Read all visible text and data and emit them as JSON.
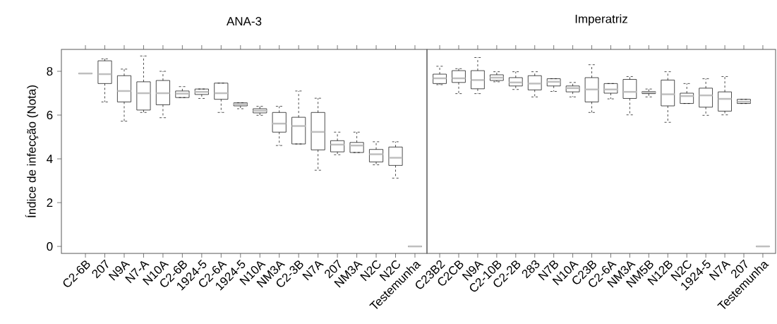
{
  "chart_data": [
    {
      "type": "box",
      "title": "ANA-3",
      "ylabel": "Índice de infecção (Nota)",
      "ylim": [
        -0.32,
        9.0
      ],
      "yticks": [
        0,
        2,
        4,
        6,
        8
      ],
      "categories": [
        "C2-6B",
        "207",
        "N9A",
        "N7-A",
        "N10A",
        "C2-6B",
        "1924-5",
        "C2-6A",
        "1924-5",
        "N10A",
        "NM3A",
        "C2-3B",
        "N7A",
        "207",
        "NM3A",
        "N2C",
        "N2C",
        "Testemunha"
      ],
      "boxes": [
        {
          "low": 7.9,
          "q1": 7.9,
          "median": 7.9,
          "q3": 7.9,
          "high": 7.9
        },
        {
          "low": 6.6,
          "q1": 7.44,
          "median": 7.87,
          "q3": 8.48,
          "high": 8.57
        },
        {
          "low": 5.72,
          "q1": 6.6,
          "median": 7.1,
          "q3": 7.8,
          "high": 8.1
        },
        {
          "low": 6.12,
          "q1": 6.23,
          "median": 7.0,
          "q3": 7.52,
          "high": 8.7
        },
        {
          "low": 5.88,
          "q1": 6.47,
          "median": 7.0,
          "q3": 7.58,
          "high": 8.0
        },
        {
          "low": 6.8,
          "q1": 6.8,
          "median": 6.98,
          "q3": 7.1,
          "high": 7.3
        },
        {
          "low": 6.76,
          "q1": 6.94,
          "median": 7.06,
          "q3": 7.19,
          "high": 7.19
        },
        {
          "low": 6.12,
          "q1": 6.72,
          "median": 7.0,
          "q3": 7.46,
          "high": 7.46
        },
        {
          "low": 6.29,
          "q1": 6.42,
          "median": 6.5,
          "q3": 6.56,
          "high": 6.56
        },
        {
          "low": 5.99,
          "q1": 6.1,
          "median": 6.2,
          "q3": 6.29,
          "high": 6.4
        },
        {
          "low": 4.61,
          "q1": 5.22,
          "median": 5.61,
          "q3": 6.12,
          "high": 6.4
        },
        {
          "low": 4.68,
          "q1": 4.68,
          "median": 5.5,
          "q3": 5.9,
          "high": 7.1
        },
        {
          "low": 3.48,
          "q1": 4.41,
          "median": 5.23,
          "q3": 6.12,
          "high": 6.77
        },
        {
          "low": 4.19,
          "q1": 4.32,
          "median": 4.65,
          "q3": 4.83,
          "high": 5.22
        },
        {
          "low": 4.29,
          "q1": 4.29,
          "median": 4.61,
          "q3": 4.75,
          "high": 5.22
        },
        {
          "low": 3.73,
          "q1": 3.86,
          "median": 4.21,
          "q3": 4.43,
          "high": 4.78
        },
        {
          "low": 3.12,
          "q1": 3.7,
          "median": 4.05,
          "q3": 4.54,
          "high": 4.78
        },
        {
          "low": 0,
          "q1": 0,
          "median": 0,
          "q3": 0,
          "high": 0
        }
      ]
    },
    {
      "type": "box",
      "title": "Imperatriz",
      "ylim": [
        -0.32,
        9.0
      ],
      "tick_labels": "x",
      "categories": [
        "C23B2",
        "C2CB",
        "N9A",
        "C2-10B",
        "C2-2B",
        "283",
        "N7B",
        "N10A",
        "C23B",
        "C2-6A",
        "NM3A",
        "NM5B",
        "N12B",
        "N2C",
        "1924-5",
        "N7A",
        "207",
        "Testemunha"
      ],
      "boxes": [
        {
          "low": 7.39,
          "q1": 7.44,
          "median": 7.68,
          "q3": 7.87,
          "high": 8.23
        },
        {
          "low": 6.98,
          "q1": 7.49,
          "median": 7.68,
          "q3": 8.03,
          "high": 8.12
        },
        {
          "low": 6.98,
          "q1": 7.2,
          "median": 7.6,
          "q3": 8.03,
          "high": 8.63
        },
        {
          "low": 7.52,
          "q1": 7.58,
          "median": 7.71,
          "q3": 7.84,
          "high": 7.98
        },
        {
          "low": 7.17,
          "q1": 7.33,
          "median": 7.49,
          "q3": 7.71,
          "high": 7.98
        },
        {
          "low": 6.83,
          "q1": 7.15,
          "median": 7.44,
          "q3": 7.8,
          "high": 7.98
        },
        {
          "low": 7.08,
          "q1": 7.33,
          "median": 7.52,
          "q3": 7.66,
          "high": 7.66
        },
        {
          "low": 6.83,
          "q1": 7.06,
          "median": 7.23,
          "q3": 7.33,
          "high": 7.49
        },
        {
          "low": 6.12,
          "q1": 6.6,
          "median": 7.17,
          "q3": 7.71,
          "high": 8.3
        },
        {
          "low": 6.74,
          "q1": 7.0,
          "median": 7.17,
          "q3": 7.44,
          "high": 7.44
        },
        {
          "low": 6.01,
          "q1": 6.76,
          "median": 7.06,
          "q3": 7.63,
          "high": 7.76
        },
        {
          "low": 6.83,
          "q1": 6.98,
          "median": 7.04,
          "q3": 7.08,
          "high": 7.19
        },
        {
          "low": 5.67,
          "q1": 6.42,
          "median": 6.95,
          "q3": 7.6,
          "high": 7.98
        },
        {
          "low": 6.53,
          "q1": 6.53,
          "median": 6.87,
          "q3": 7.0,
          "high": 7.44
        },
        {
          "low": 5.99,
          "q1": 6.36,
          "median": 6.9,
          "q3": 7.23,
          "high": 7.66
        },
        {
          "low": 6.01,
          "q1": 6.18,
          "median": 6.74,
          "q3": 7.06,
          "high": 7.76
        },
        {
          "low": 6.53,
          "q1": 6.53,
          "median": 6.61,
          "q3": 6.72,
          "high": 6.72
        },
        {
          "low": 0,
          "q1": 0,
          "median": 0,
          "q3": 0,
          "high": 0
        }
      ]
    }
  ]
}
